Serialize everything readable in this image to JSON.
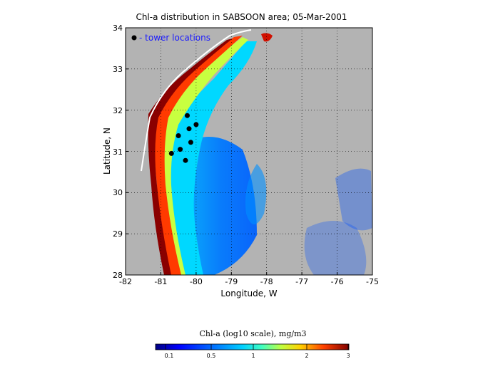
{
  "title": "Chl-a distribution in SABSOON area; 05-Mar-2001",
  "x_axis": {
    "label": "Longitude, W",
    "ticks": [
      "-82",
      "-81",
      "-80",
      "-79",
      "-78",
      "-77",
      "-76",
      "-75"
    ]
  },
  "y_axis": {
    "label": "Latitude, N",
    "ticks": [
      "34",
      "33",
      "32",
      "31",
      "30",
      "29",
      "28"
    ]
  },
  "legend": {
    "marker": "black-dot",
    "label": "- tower locations"
  },
  "colorbar": {
    "title": "Chl-a (log10 scale), mg/m3",
    "ticks": [
      "0.1",
      "0.5",
      "1",
      "2",
      "3"
    ]
  },
  "colors": {
    "land": "#b3b3b3",
    "ocean_low": "#0050ff",
    "ocean_mid": "#00c8ff",
    "coastal_high": "#ff3000",
    "max": "#800000"
  },
  "map": {
    "lon_range": [
      -82,
      -75
    ],
    "lat_range": [
      28,
      34
    ],
    "grid": "dotted",
    "towers": [
      {
        "lon": -80.25,
        "lat": 31.87
      },
      {
        "lon": -80.0,
        "lat": 31.65
      },
      {
        "lon": -80.2,
        "lat": 31.55
      },
      {
        "lon": -80.5,
        "lat": 31.38
      },
      {
        "lon": -80.15,
        "lat": 31.22
      },
      {
        "lon": -80.45,
        "lat": 31.05
      },
      {
        "lon": -80.7,
        "lat": 30.95
      },
      {
        "lon": -80.3,
        "lat": 30.78
      }
    ]
  }
}
